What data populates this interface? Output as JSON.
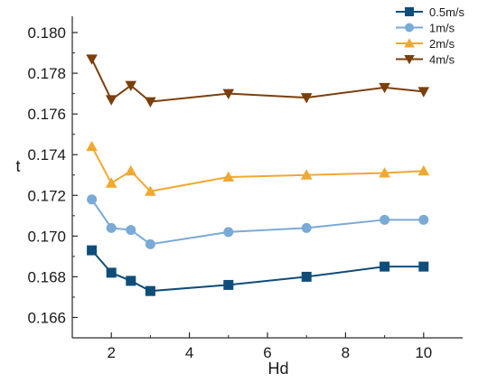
{
  "chart_data": {
    "type": "line",
    "title": "",
    "xlabel": "Hd",
    "ylabel": "t",
    "xlim": [
      1.0,
      11.0
    ],
    "ylim": [
      0.165,
      0.1808
    ],
    "xticks": [
      2,
      4,
      6,
      8,
      10
    ],
    "yticks": [
      0.166,
      0.168,
      0.17,
      0.172,
      0.174,
      0.176,
      0.178,
      0.18
    ],
    "xtick_labels": [
      "2",
      "4",
      "6",
      "8",
      "10"
    ],
    "ytick_labels": [
      "0.166",
      "0.168",
      "0.170",
      "0.172",
      "0.174",
      "0.176",
      "0.178",
      "0.180"
    ],
    "grid": false,
    "legend_position": "top-right",
    "x": [
      1.5,
      2,
      2.5,
      3,
      5,
      7,
      9,
      10
    ],
    "series": [
      {
        "name": "0.5m/s",
        "color": "#0e4d7a",
        "marker": "square",
        "values": [
          0.1693,
          0.1682,
          0.1678,
          0.1673,
          0.1676,
          0.168,
          0.1685,
          0.1685
        ]
      },
      {
        "name": "1m/s",
        "color": "#7aaad6",
        "marker": "circle",
        "values": [
          0.1718,
          0.1704,
          0.1703,
          0.1696,
          0.1702,
          0.1704,
          0.1708,
          0.1708
        ]
      },
      {
        "name": "2m/s",
        "color": "#f0a830",
        "marker": "triangle-up",
        "values": [
          0.1744,
          0.1726,
          0.1732,
          0.1722,
          0.1729,
          0.173,
          0.1731,
          0.1732
        ]
      },
      {
        "name": "4m/s",
        "color": "#7b3f0c",
        "marker": "triangle-down",
        "values": [
          0.1787,
          0.1767,
          0.1774,
          0.1766,
          0.177,
          0.1768,
          0.1773,
          0.1771
        ]
      }
    ]
  }
}
